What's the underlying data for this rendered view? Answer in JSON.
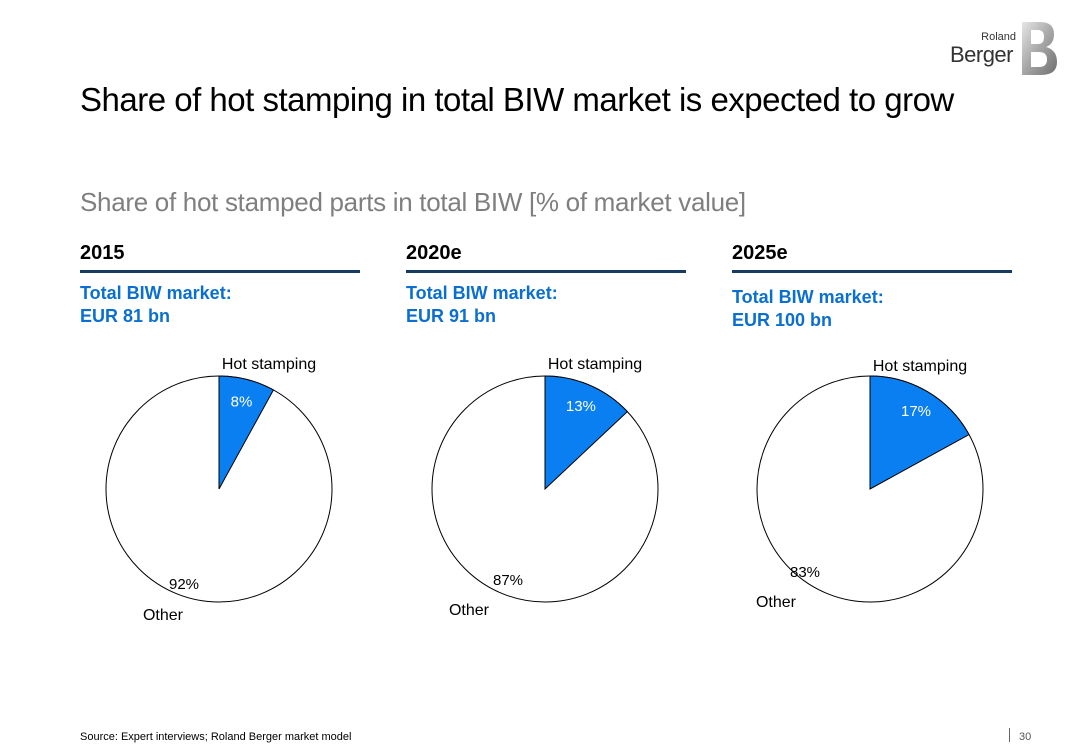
{
  "logo": {
    "top_word": "Roland",
    "main_word": "Berger"
  },
  "title": "Share of hot stamping in total BIW market is expected to grow",
  "subtitle": "Share of hot stamped parts in total BIW [% of market value]",
  "chart_data": [
    {
      "type": "pie",
      "title": "2015",
      "subtitle": "Total BIW market:",
      "subtitle2": "EUR 81 bn",
      "slices": [
        {
          "label": "Hot stamping",
          "value": 8,
          "value_label": "8%",
          "color": "#0a7ff2"
        },
        {
          "label": "Other",
          "value": 92,
          "value_label": "92%",
          "color": "#ffffff"
        }
      ]
    },
    {
      "type": "pie",
      "title": "2020e",
      "subtitle": "Total BIW market:",
      "subtitle2": "EUR 91 bn",
      "slices": [
        {
          "label": "Hot stamping",
          "value": 13,
          "value_label": "13%",
          "color": "#0a7ff2"
        },
        {
          "label": "Other",
          "value": 87,
          "value_label": "87%",
          "color": "#ffffff"
        }
      ]
    },
    {
      "type": "pie",
      "title": "2025e",
      "subtitle": "Total BIW market:",
      "subtitle2": "EUR 100 bn",
      "slices": [
        {
          "label": "Hot stamping",
          "value": 17,
          "value_label": "17%",
          "color": "#0a7ff2"
        },
        {
          "label": "Other",
          "value": 83,
          "value_label": "83%",
          "color": "#ffffff"
        }
      ]
    }
  ],
  "footer": {
    "source": "Source: Expert interviews; Roland Berger market model",
    "page": "30"
  },
  "colors": {
    "accent": "#0a6fd1",
    "rule": "#173a63",
    "slice": "#0a7ff2"
  }
}
